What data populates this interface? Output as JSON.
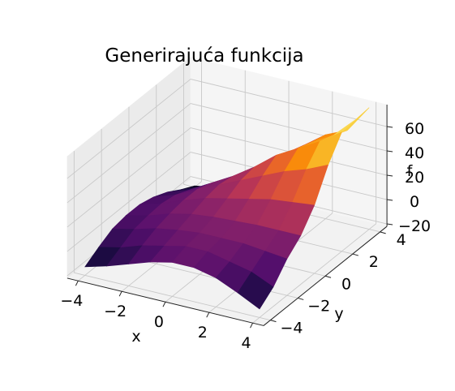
{
  "chart_data": {
    "type": "surface3d",
    "title": "Generirajuća funkcija",
    "xlabel": "x",
    "ylabel": "y",
    "zlabel": "f",
    "x_ticks": [
      "−4",
      "−2",
      "0",
      "2",
      "4"
    ],
    "y_ticks": [
      "−4",
      "−2",
      "0",
      "2",
      "4"
    ],
    "z_ticks": [
      "−20",
      "0",
      "20",
      "40",
      "60"
    ],
    "xlim": [
      -4.5,
      4.5
    ],
    "ylim": [
      -4.5,
      4.5
    ],
    "zlim": [
      -22,
      78
    ],
    "colormap": "inferno",
    "grid": true,
    "x": [
      -4,
      -3,
      -2,
      -1,
      0,
      1,
      2,
      3,
      4
    ],
    "y": [
      4,
      3,
      2,
      1,
      0,
      -1,
      -2,
      -3,
      -4
    ],
    "z": [
      [
        -21,
        -18,
        -10,
        2,
        18,
        34,
        47,
        55,
        78
      ],
      [
        -15,
        -8,
        2,
        12,
        24,
        38,
        50,
        60,
        77
      ],
      [
        -8,
        -2,
        8,
        18,
        30,
        44,
        54,
        64,
        76
      ],
      [
        -3,
        3,
        12,
        20,
        28,
        36,
        44,
        50,
        58
      ],
      [
        0,
        5,
        12,
        18,
        22,
        26,
        30,
        32,
        34
      ],
      [
        0,
        4,
        10,
        14,
        16,
        17,
        18,
        18,
        18
      ],
      [
        -2,
        2,
        7,
        10,
        12,
        12,
        12,
        10,
        8
      ],
      [
        -8,
        -4,
        2,
        6,
        10,
        10,
        6,
        2,
        -6
      ],
      [
        -15,
        -10,
        -4,
        2,
        6,
        6,
        2,
        -6,
        -15
      ]
    ]
  }
}
